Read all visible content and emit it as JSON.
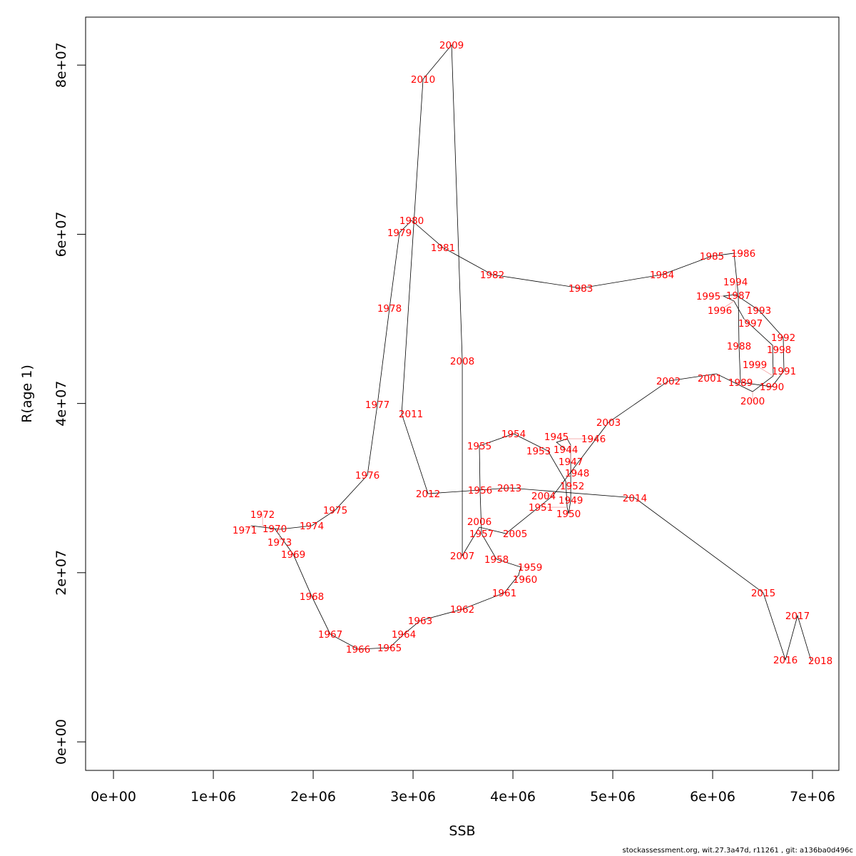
{
  "chart_data": {
    "type": "line",
    "xlabel": "SSB",
    "ylabel": "R(age 1)",
    "xlim": [
      -279000,
      7264000
    ],
    "ylim": [
      -3370000,
      85670000
    ],
    "x_ticks": [
      0,
      1000000,
      2000000,
      3000000,
      4000000,
      5000000,
      6000000,
      7000000
    ],
    "x_tick_labels": [
      "0e+00",
      "1e+06",
      "2e+06",
      "3e+06",
      "4e+06",
      "5e+06",
      "6e+06",
      "7e+06"
    ],
    "y_ticks": [
      0,
      20000000,
      40000000,
      60000000,
      80000000
    ],
    "y_tick_labels": [
      "0e+00",
      "2e+07",
      "4e+07",
      "6e+07",
      "8e+07"
    ],
    "grid": false,
    "line_color": "#000000",
    "label_color": "#FF0000",
    "points": [
      {
        "year": "1944",
        "ssb": 4529000,
        "r": 34570000
      },
      {
        "year": "1945",
        "ssb": 4436000,
        "r": 35410000
      },
      {
        "year": "1946",
        "ssb": 4543000,
        "r": 35830000
      },
      {
        "year": "1947",
        "ssb": 4579000,
        "r": 35080000
      },
      {
        "year": "1948",
        "ssb": 4579000,
        "r": 32290000
      },
      {
        "year": "1949",
        "ssb": 4579000,
        "r": 28580000
      },
      {
        "year": "1950",
        "ssb": 4557000,
        "r": 26980000
      },
      {
        "year": "1951",
        "ssb": 4543000,
        "r": 27740000
      },
      {
        "year": "1952",
        "ssb": 4529000,
        "r": 30780000
      },
      {
        "year": "1953",
        "ssb": 4350000,
        "r": 34400000
      },
      {
        "year": "1954",
        "ssb": 4007000,
        "r": 36420000
      },
      {
        "year": "1955",
        "ssb": 3664000,
        "r": 34990000
      },
      {
        "year": "1956",
        "ssb": 3671000,
        "r": 29760000
      },
      {
        "year": "1957",
        "ssb": 3686000,
        "r": 24620000
      },
      {
        "year": "1958",
        "ssb": 3836000,
        "r": 21590000
      },
      {
        "year": "1959",
        "ssb": 4079000,
        "r": 20660000
      },
      {
        "year": "1960",
        "ssb": 4057000,
        "r": 19730000
      },
      {
        "year": "1961",
        "ssb": 3914000,
        "r": 17620000
      },
      {
        "year": "1962",
        "ssb": 3493000,
        "r": 15680000
      },
      {
        "year": "1963",
        "ssb": 3071000,
        "r": 14330000
      },
      {
        "year": "1964",
        "ssb": 2907000,
        "r": 12730000
      },
      {
        "year": "1965",
        "ssb": 2764000,
        "r": 11130000
      },
      {
        "year": "1966",
        "ssb": 2450000,
        "r": 10960000
      },
      {
        "year": "1967",
        "ssb": 2171000,
        "r": 12730000
      },
      {
        "year": "1968",
        "ssb": 1986000,
        "r": 17200000
      },
      {
        "year": "1969",
        "ssb": 1800000,
        "r": 22180000
      },
      {
        "year": "1970",
        "ssb": 1614000,
        "r": 25210000
      },
      {
        "year": "1971",
        "ssb": 1379000,
        "r": 25550000
      },
      {
        "year": "1972",
        "ssb": 1493000,
        "r": 25380000
      },
      {
        "year": "1973",
        "ssb": 1664000,
        "r": 25130000
      },
      {
        "year": "1974",
        "ssb": 1986000,
        "r": 25550000
      },
      {
        "year": "1975",
        "ssb": 2221000,
        "r": 27400000
      },
      {
        "year": "1976",
        "ssb": 2543000,
        "r": 31530000
      },
      {
        "year": "1977",
        "ssb": 2643000,
        "r": 39880000
      },
      {
        "year": "1978",
        "ssb": 2764000,
        "r": 51260000
      },
      {
        "year": "1979",
        "ssb": 2864000,
        "r": 60200000
      },
      {
        "year": "1980",
        "ssb": 2986000,
        "r": 61640000
      },
      {
        "year": "1981",
        "ssb": 3300000,
        "r": 58430000
      },
      {
        "year": "1982",
        "ssb": 3793000,
        "r": 55230000
      },
      {
        "year": "1983",
        "ssb": 4679000,
        "r": 53630000
      },
      {
        "year": "1984",
        "ssb": 5493000,
        "r": 55230000
      },
      {
        "year": "1985",
        "ssb": 5993000,
        "r": 57420000
      },
      {
        "year": "1986",
        "ssb": 6214000,
        "r": 57760000
      },
      {
        "year": "1987",
        "ssb": 6257000,
        "r": 52780000
      },
      {
        "year": "1988",
        "ssb": 6264000,
        "r": 46800000
      },
      {
        "year": "1989",
        "ssb": 6279000,
        "r": 42500000
      },
      {
        "year": "1990",
        "ssb": 6593000,
        "r": 41990000
      },
      {
        "year": "1991",
        "ssb": 6714000,
        "r": 43840000
      },
      {
        "year": "1992",
        "ssb": 6707000,
        "r": 47810000
      },
      {
        "year": "1993",
        "ssb": 6464000,
        "r": 51010000
      },
      {
        "year": "1994",
        "ssb": 6229000,
        "r": 52870000
      },
      {
        "year": "1995",
        "ssb": 6107000,
        "r": 52700000
      },
      {
        "year": "1996",
        "ssb": 6214000,
        "r": 52110000
      },
      {
        "year": "1997",
        "ssb": 6314000,
        "r": 50000000
      },
      {
        "year": "1998",
        "ssb": 6600000,
        "r": 46880000
      },
      {
        "year": "1999",
        "ssb": 6607000,
        "r": 43250000
      },
      {
        "year": "2000",
        "ssb": 6400000,
        "r": 41400000
      },
      {
        "year": "2001",
        "ssb": 6036000,
        "r": 43510000
      },
      {
        "year": "2002",
        "ssb": 5557000,
        "r": 42660000
      },
      {
        "year": "2003",
        "ssb": 4957000,
        "r": 37770000
      },
      {
        "year": "2004",
        "ssb": 4400000,
        "r": 29090000
      },
      {
        "year": "2005",
        "ssb": 3929000,
        "r": 24620000
      },
      {
        "year": "2006",
        "ssb": 3664000,
        "r": 25380000
      },
      {
        "year": "2007",
        "ssb": 3493000,
        "r": 22010000
      },
      {
        "year": "2008",
        "ssb": 3493000,
        "r": 45030000
      },
      {
        "year": "2009",
        "ssb": 3386000,
        "r": 82380000
      },
      {
        "year": "2010",
        "ssb": 3100000,
        "r": 78330000
      },
      {
        "year": "2011",
        "ssb": 2886000,
        "r": 38790000
      },
      {
        "year": "2012",
        "ssb": 3150000,
        "r": 29340000
      },
      {
        "year": "2013",
        "ssb": 3964000,
        "r": 30020000
      },
      {
        "year": "2014",
        "ssb": 5221000,
        "r": 28840000
      },
      {
        "year": "2015",
        "ssb": 6507000,
        "r": 17620000
      },
      {
        "year": "2016",
        "ssb": 6729000,
        "r": 9700000
      },
      {
        "year": "2017",
        "ssb": 6850000,
        "r": 14920000
      },
      {
        "year": "2018",
        "ssb": 6986000,
        "r": 9610000
      }
    ]
  },
  "footer": "stockassessment.org, wit.27.3a47d, r11261 , git: a136ba0d496c"
}
